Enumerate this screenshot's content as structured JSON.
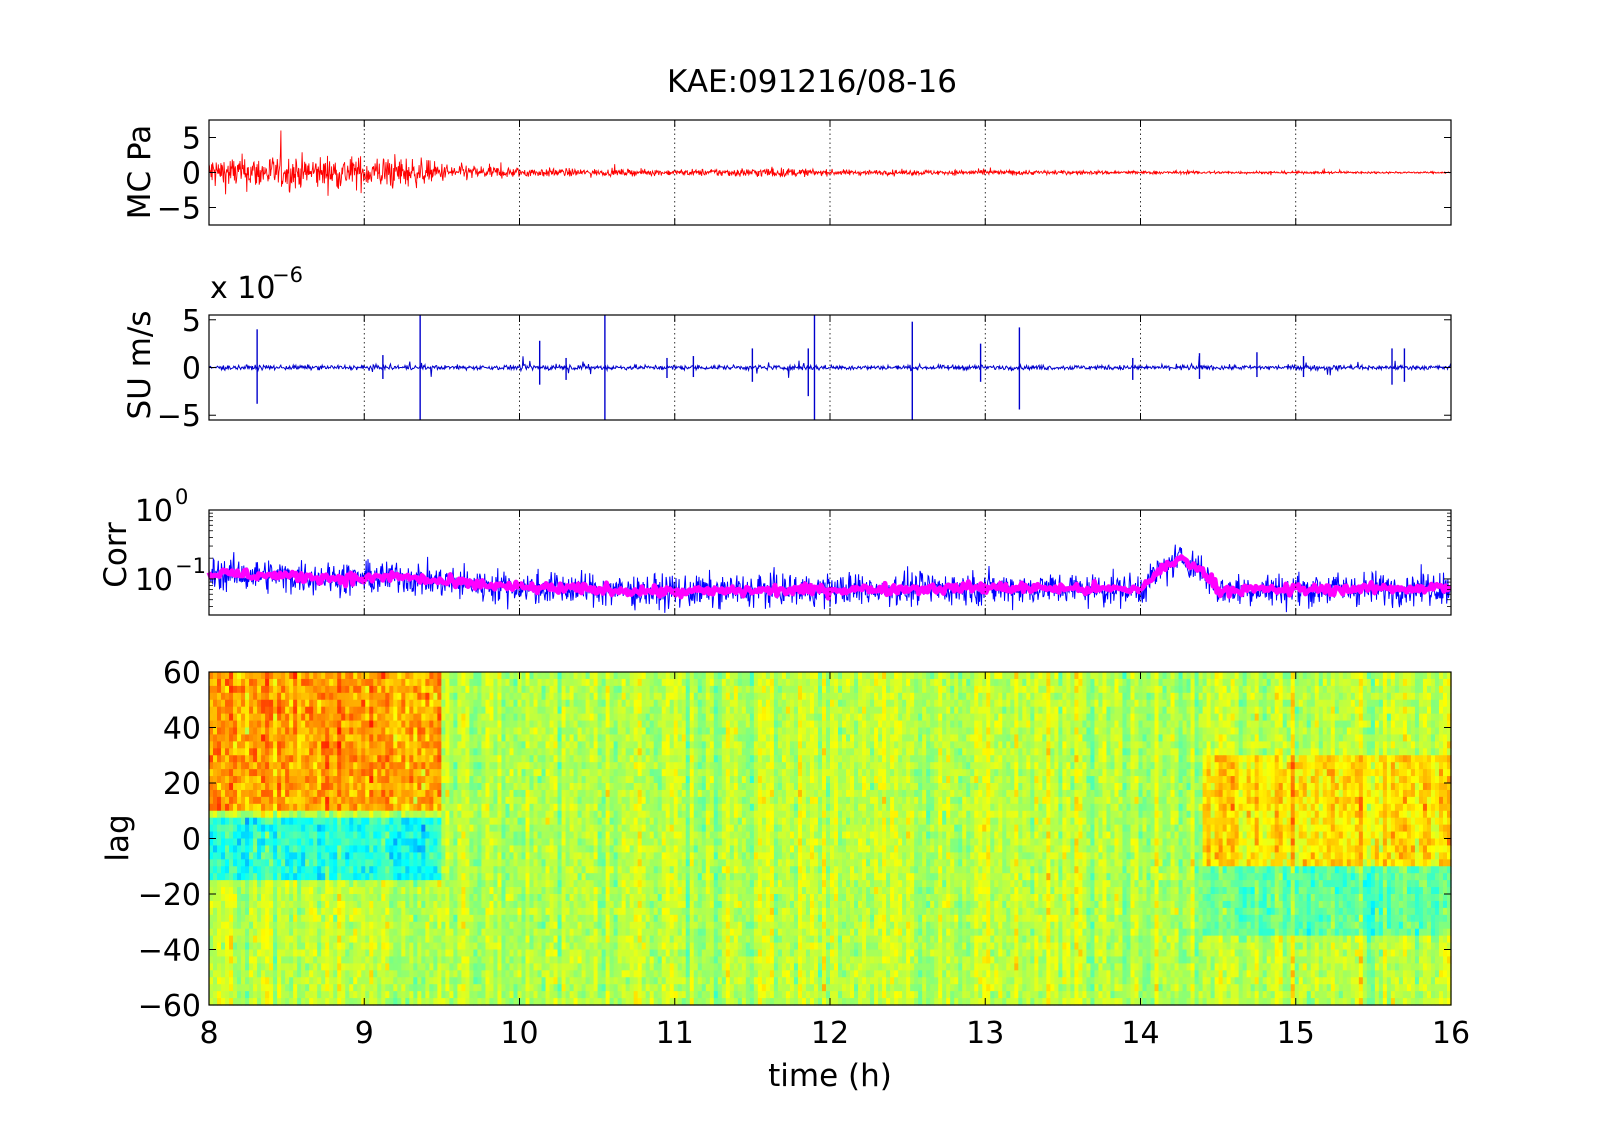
{
  "figure": {
    "title": "KAE:091216/08-16",
    "xlabel": "time (h)"
  },
  "chart_data": [
    {
      "type": "line",
      "name": "mc",
      "ylabel": "MC Pa",
      "xlim": [
        8,
        16
      ],
      "ylim": [
        -7.5,
        7.5
      ],
      "xticks": [
        8,
        9,
        10,
        11,
        12,
        13,
        14,
        15,
        16
      ],
      "yticks": [
        -5,
        0,
        5
      ],
      "grid": "x-dotted",
      "series": [
        {
          "color": "#ff0000",
          "x": [
            8.0,
            8.5,
            9.0,
            9.2,
            9.5,
            10.0,
            10.5,
            11.0,
            11.6,
            12.0,
            12.5,
            13.0,
            13.5,
            14.0,
            14.5,
            15.0,
            15.5,
            16.0
          ],
          "amplitude": [
            4.0,
            4.0,
            3.8,
            4.2,
            2.2,
            1.2,
            0.8,
            0.7,
            1.2,
            0.7,
            0.6,
            0.65,
            0.5,
            0.4,
            0.35,
            0.3,
            0.25,
            0.2
          ]
        }
      ]
    },
    {
      "type": "line",
      "name": "su",
      "ylabel": "SU m/s",
      "scale_label": "x 10",
      "scale_exponent": "−6",
      "xlim": [
        8,
        16
      ],
      "ylim": [
        -5.5,
        5.5
      ],
      "xticks": [
        8,
        9,
        10,
        11,
        12,
        13,
        14,
        15,
        16
      ],
      "yticks": [
        -5,
        0,
        5
      ],
      "grid": "x-dotted",
      "series": [
        {
          "color": "#0000cc",
          "baseline_amplitude": 0.25,
          "spikes": [
            {
              "x": 8.31,
              "up": 4.0,
              "down": -3.8
            },
            {
              "x": 9.12,
              "up": 1.3,
              "down": -1.2
            },
            {
              "x": 9.36,
              "up": 5.5,
              "down": -5.5
            },
            {
              "x": 10.13,
              "up": 2.8,
              "down": -1.8
            },
            {
              "x": 10.3,
              "up": 1.0,
              "down": -1.3
            },
            {
              "x": 10.55,
              "up": 5.5,
              "down": -5.5
            },
            {
              "x": 10.95,
              "up": 1.0,
              "down": -1.1
            },
            {
              "x": 11.12,
              "up": 1.2,
              "down": -1.0
            },
            {
              "x": 11.5,
              "up": 2.0,
              "down": -1.5
            },
            {
              "x": 11.86,
              "up": 2.0,
              "down": -3.0
            },
            {
              "x": 11.9,
              "up": 5.5,
              "down": -5.5
            },
            {
              "x": 12.53,
              "up": 4.8,
              "down": -5.5
            },
            {
              "x": 12.97,
              "up": 2.5,
              "down": -1.5
            },
            {
              "x": 13.22,
              "up": 4.2,
              "down": -4.4
            },
            {
              "x": 13.95,
              "up": 1.0,
              "down": -1.3
            },
            {
              "x": 14.38,
              "up": 1.5,
              "down": -1.2
            },
            {
              "x": 14.75,
              "up": 1.6,
              "down": -1.0
            },
            {
              "x": 15.05,
              "up": 1.2,
              "down": -1.0
            },
            {
              "x": 15.62,
              "up": 2.0,
              "down": -1.8
            },
            {
              "x": 15.7,
              "up": 2.0,
              "down": -1.5
            }
          ],
          "active_ranges": [
            [
              9.0,
              9.45
            ],
            [
              10.0,
              10.6
            ],
            [
              11.4,
              11.95
            ],
            [
              14.1,
              14.45
            ],
            [
              15.0,
              15.75
            ]
          ]
        }
      ]
    },
    {
      "type": "line",
      "name": "corr",
      "ylabel": "Corr",
      "yscale": "log",
      "xlim": [
        8,
        16
      ],
      "ylim": [
        0.03,
        1
      ],
      "xticks": [
        8,
        9,
        10,
        11,
        12,
        13,
        14,
        15,
        16
      ],
      "yticks": [
        {
          "value": 0.1,
          "base": "10",
          "exponent": "−1"
        },
        {
          "value": 1,
          "base": "10",
          "exponent": "0"
        }
      ],
      "grid": "x-dotted",
      "series": [
        {
          "color": "#0000ff",
          "style": "noisy-envelope",
          "x": [
            8.0,
            8.5,
            9.0,
            9.2,
            9.5,
            10.0,
            11.0,
            12.0,
            13.0,
            14.0,
            14.27,
            14.5,
            15.0,
            16.0
          ],
          "mean": [
            0.12,
            0.11,
            0.1,
            0.11,
            0.09,
            0.075,
            0.065,
            0.07,
            0.075,
            0.07,
            0.2,
            0.07,
            0.07,
            0.075
          ]
        },
        {
          "color": "#ff00ff",
          "style": "thick-smoothed",
          "x": [
            8.0,
            8.5,
            9.0,
            9.2,
            9.5,
            10.0,
            11.0,
            12.0,
            13.0,
            14.0,
            14.27,
            14.5,
            15.0,
            16.0
          ],
          "mean": [
            0.12,
            0.11,
            0.1,
            0.11,
            0.09,
            0.075,
            0.065,
            0.07,
            0.075,
            0.07,
            0.2,
            0.07,
            0.07,
            0.075
          ]
        }
      ]
    },
    {
      "type": "heatmap",
      "name": "lag",
      "ylabel": "lag",
      "xlabel": "time (h)",
      "xlim": [
        8,
        16
      ],
      "ylim": [
        -60,
        60
      ],
      "xticks": [
        8,
        9,
        10,
        11,
        12,
        13,
        14,
        15,
        16
      ],
      "yticks": [
        -60,
        -40,
        -20,
        0,
        20,
        40,
        60
      ],
      "colormap": "jet",
      "clim": [
        -1,
        1
      ],
      "features": [
        {
          "x_range": [
            8.0,
            9.5
          ],
          "y_range": [
            10,
            60
          ],
          "value": 0.35
        },
        {
          "x_range": [
            8.0,
            9.5
          ],
          "y_range": [
            -15,
            8
          ],
          "value": -0.35
        },
        {
          "x_range": [
            14.4,
            16.0
          ],
          "y_range": [
            -10,
            30
          ],
          "value": 0.2
        },
        {
          "x_range": [
            14.4,
            16.0
          ],
          "y_range": [
            -35,
            -10
          ],
          "value": -0.2
        }
      ]
    }
  ]
}
